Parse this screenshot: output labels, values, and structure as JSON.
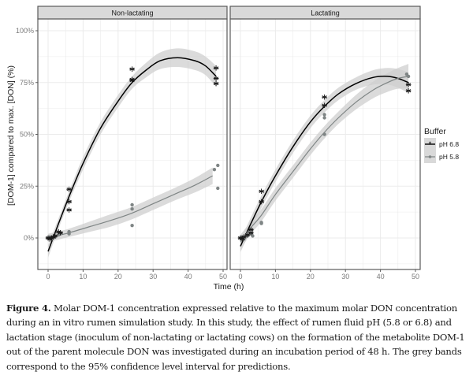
{
  "caption": {
    "label": "Figure 4.",
    "text": " Molar DOM-1 concentration expressed relative to the maximum molar DON concentration during an in vitro rumen simulation study. In this study, the effect of rumen fluid pH (5.8 or 6.8) and lactation stage (inoculum of non-lactating or lactating cows) on the formation of the metabolite DOM-1 out of the parent molecule DON was investigated during an incubation period of 48 h. The grey bands correspond to the 95% confidence level interval for predictions."
  },
  "chart_data": {
    "type": "scatter",
    "xlabel": "Time (h)",
    "ylabel": "[DOM-1] compared to max. [DON] (%)",
    "xlim": [
      -3,
      51
    ],
    "ylim": [
      -10,
      107
    ],
    "x_ticks": [
      0,
      10,
      20,
      30,
      40,
      50
    ],
    "x_tick_labels": [
      "0",
      "10",
      "20",
      "30",
      "40",
      "50"
    ],
    "y_ticks": [
      0,
      25,
      50,
      75,
      100
    ],
    "y_tick_labels": [
      "0%",
      "25%",
      "50%",
      "75%",
      "100%"
    ],
    "grid": true,
    "legend": {
      "title": "Buffer",
      "position": "right",
      "entries": [
        {
          "label": "pH 6.8",
          "color": "#000000",
          "marker": "asterisk"
        },
        {
          "label": "pH 5.8",
          "color": "#8a8a8a",
          "marker": "circle"
        }
      ]
    },
    "colors": {
      "ph68": "#000000",
      "ph58": "#7f8585",
      "band": "#cfcfcf",
      "strip": "#d9d9d9",
      "grid": "#ebebeb"
    },
    "panels": [
      {
        "title": "Non-lactating",
        "series": [
          {
            "name": "pH 6.8",
            "points": [
              [
                0,
                0
              ],
              [
                0.5,
                -0.5
              ],
              [
                1,
                0
              ],
              [
                1.5,
                0.5
              ],
              [
                2,
                1
              ],
              [
                3,
                3
              ],
              [
                3.5,
                2.5
              ],
              [
                6,
                23.5
              ],
              [
                6,
                17.5
              ],
              [
                6,
                13.5
              ],
              [
                24,
                81.5
              ],
              [
                24,
                76.5
              ],
              [
                24,
                76
              ],
              [
                48,
                82
              ],
              [
                48,
                77
              ],
              [
                48,
                74.5
              ]
            ],
            "fit": [
              [
                0,
                -6.5
              ],
              [
                3,
                7
              ],
              [
                6,
                20
              ],
              [
                10,
                36
              ],
              [
                15,
                53
              ],
              [
                20,
                66
              ],
              [
                24,
                75
              ],
              [
                28,
                81
              ],
              [
                32,
                85.5
              ],
              [
                37,
                87
              ],
              [
                42,
                85.5
              ],
              [
                45,
                83
              ],
              [
                48,
                78
              ]
            ],
            "band_halfwidth": [
              3,
              2.5,
              2.5,
              3,
              3,
              3,
              3,
              3.5,
              4,
              4.5,
              4.5,
              4.5,
              5
            ]
          },
          {
            "name": "pH 5.8",
            "points": [
              [
                0,
                0
              ],
              [
                0.5,
                0.5
              ],
              [
                1,
                -0.5
              ],
              [
                2,
                0.5
              ],
              [
                3,
                1.5
              ],
              [
                3.5,
                2
              ],
              [
                6,
                3
              ],
              [
                6,
                2
              ],
              [
                24,
                16
              ],
              [
                24,
                14
              ],
              [
                24,
                6
              ],
              [
                47.5,
                33
              ],
              [
                48.5,
                35
              ],
              [
                48.5,
                24
              ]
            ],
            "fit": [
              [
                0,
                0
              ],
              [
                6,
                2.5
              ],
              [
                12,
                5.5
              ],
              [
                18,
                8.5
              ],
              [
                24,
                12
              ],
              [
                30,
                16.5
              ],
              [
                36,
                21
              ],
              [
                42,
                25.5
              ],
              [
                47,
                30
              ]
            ],
            "band_halfwidth": [
              2,
              2,
              2.5,
              3,
              3,
              3,
              3,
              3.5,
              4
            ]
          }
        ]
      },
      {
        "title": "Lactating",
        "series": [
          {
            "name": "pH 6.8",
            "points": [
              [
                0,
                0
              ],
              [
                0.5,
                -0.5
              ],
              [
                1,
                0.5
              ],
              [
                2,
                1.5
              ],
              [
                3,
                4
              ],
              [
                3,
                2.5
              ],
              [
                6,
                22.5
              ],
              [
                6,
                17.5
              ],
              [
                24,
                68
              ],
              [
                24,
                64
              ],
              [
                48,
                74
              ],
              [
                48,
                71
              ]
            ],
            "fit": [
              [
                0,
                -4
              ],
              [
                3,
                7
              ],
              [
                6,
                17.5
              ],
              [
                10,
                30
              ],
              [
                15,
                44
              ],
              [
                20,
                56
              ],
              [
                24,
                63.5
              ],
              [
                28,
                69.5
              ],
              [
                33,
                74.5
              ],
              [
                38,
                77.5
              ],
              [
                42,
                78
              ],
              [
                45,
                77
              ],
              [
                48,
                75
              ]
            ],
            "band_halfwidth": [
              3,
              3,
              3,
              3,
              3,
              3,
              3,
              3,
              3,
              3.5,
              4,
              4.5,
              5
            ]
          },
          {
            "name": "pH 5.8",
            "points": [
              [
                0,
                0
              ],
              [
                0.5,
                0.5
              ],
              [
                1,
                -0.5
              ],
              [
                2,
                1
              ],
              [
                3,
                2
              ],
              [
                3.5,
                1
              ],
              [
                6,
                7.5
              ],
              [
                6,
                7
              ],
              [
                24,
                59.5
              ],
              [
                24,
                58
              ],
              [
                24,
                50
              ],
              [
                47.5,
                79
              ],
              [
                48,
                78
              ]
            ],
            "fit": [
              [
                0,
                -2
              ],
              [
                3,
                5
              ],
              [
                6,
                11
              ],
              [
                10,
                21
              ],
              [
                15,
                32
              ],
              [
                20,
                43
              ],
              [
                24,
                51
              ],
              [
                28,
                58
              ],
              [
                33,
                65.5
              ],
              [
                38,
                71.5
              ],
              [
                42,
                75
              ],
              [
                45,
                77
              ],
              [
                48,
                78
              ]
            ],
            "band_halfwidth": [
              3.5,
              3,
              3,
              3,
              3,
              3,
              3,
              3,
              3.5,
              4,
              4.5,
              5,
              6
            ]
          }
        ]
      }
    ]
  }
}
